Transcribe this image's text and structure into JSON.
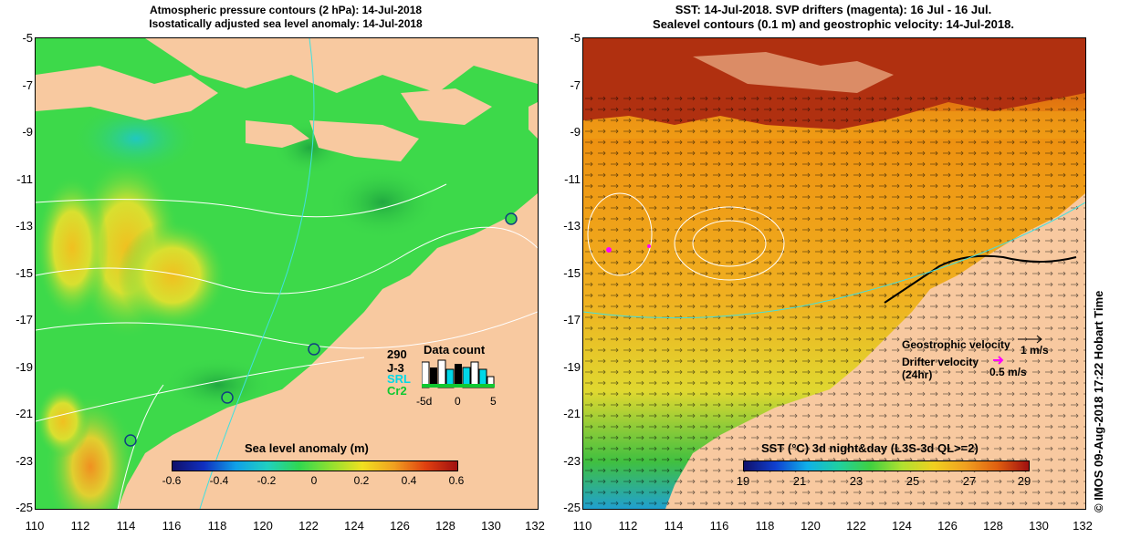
{
  "left_panel": {
    "title_line1": "Atmospheric pressure contours (2 hPa): 14-Jul-2018",
    "title_line2": "Isostatically adjusted sea level anomaly: 14-Jul-2018",
    "y_ticks": [
      "-5",
      "-7",
      "-9",
      "-11",
      "-13",
      "-15",
      "-17",
      "-19",
      "-21",
      "-23",
      "-25"
    ],
    "x_ticks": [
      "110",
      "112",
      "114",
      "116",
      "118",
      "120",
      "122",
      "124",
      "126",
      "128",
      "130",
      "132"
    ],
    "colorbar": {
      "title": "Sea level anomaly (m)",
      "ticks": [
        "-0.6",
        "-0.4",
        "-0.2",
        "0",
        "0.2",
        "0.4",
        "0.6"
      ]
    },
    "data_count": {
      "count": "290",
      "title": "Data count",
      "sat1": "J-3",
      "sat2": "SRL",
      "sat3": "Cr2",
      "axis_labels": [
        "-5d",
        "0",
        "5"
      ]
    }
  },
  "right_panel": {
    "title_line1": "SST: 14-Jul-2018. SVP drifters (magenta): 16 Jul - 16 Jul.",
    "title_line2": "Sealevel contours (0.1 m) and geostrophic velocity: 14-Jul-2018.",
    "y_ticks": [
      "-5",
      "-7",
      "-9",
      "-11",
      "-13",
      "-15",
      "-17",
      "-19",
      "-21",
      "-23",
      "-25"
    ],
    "x_ticks": [
      "110",
      "112",
      "114",
      "116",
      "118",
      "120",
      "122",
      "124",
      "126",
      "128",
      "130",
      "132"
    ],
    "colorbar": {
      "title": "SST (°C) 3d night&day (L3S-3d QL>=2)",
      "ticks": [
        "19",
        "21",
        "23",
        "25",
        "27",
        "29"
      ]
    },
    "legend": {
      "geo_label": "Geostrophic velocity",
      "geo_value": "1 m/s",
      "drifter_label": "Drifter velocity",
      "drifter_sub": "(24hr)",
      "drifter_value": "0.5 m/s"
    }
  },
  "side_label": "© IMOS 09-Aug-2018 17:22 Hobart Time",
  "colors": {
    "land": "#f8c9a0",
    "sla_ocean": "#3dd94a",
    "sst_ocean": "#ee9010",
    "drifter": "#ff00ff"
  }
}
